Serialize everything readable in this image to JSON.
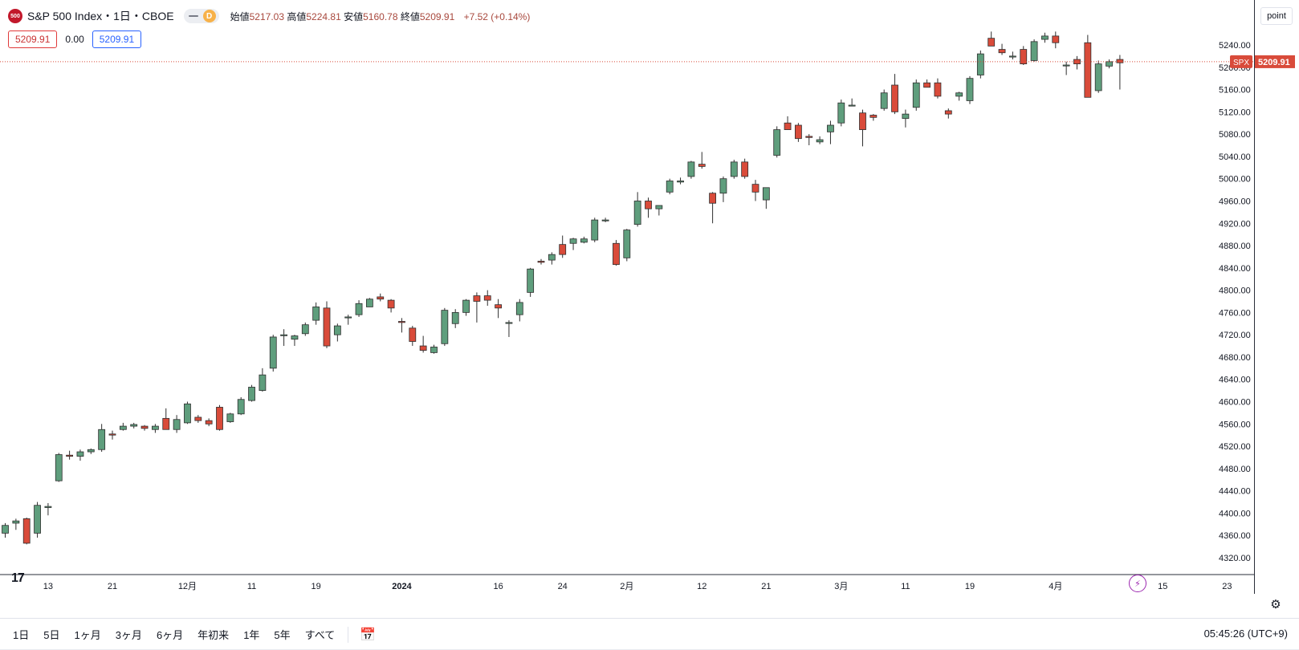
{
  "header": {
    "symbol_badge": "500",
    "title": "S&P 500 Index・1日・CBOE",
    "badge_d": "D",
    "ohlc": [
      {
        "label": "始値",
        "value": "5217.03"
      },
      {
        "label": "高値",
        "value": "5224.81"
      },
      {
        "label": "安値",
        "value": "5160.78"
      },
      {
        "label": "終値",
        "value": "5209.91"
      }
    ],
    "change": "+7.52 (+0.14%)"
  },
  "values_row": {
    "left": "5209.91",
    "middle": "0.00",
    "right": "5209.91"
  },
  "price_scale_mode": "point",
  "last_price_label": {
    "symbol": "SPX",
    "value": "5209.91"
  },
  "bottom_bar": {
    "ranges": [
      "1日",
      "5日",
      "1ヶ月",
      "3ヶ月",
      "6ヶ月",
      "年初来",
      "1年",
      "5年",
      "すべて"
    ],
    "clock": "05:45:26 (UTC+9)"
  },
  "colors": {
    "up": "#5f9e7d",
    "down": "#d94b3a",
    "price_line": "#d94b3a"
  },
  "icons": [
    "calendar-range-icon",
    "gear-icon",
    "flash-icon",
    "tradingview-logo"
  ],
  "chart_data": {
    "type": "candlestick",
    "title": "S&P 500 Index・1日・CBOE",
    "ylim": [
      4300,
      5280
    ],
    "y_ticks": [
      5240,
      5200,
      5160,
      5120,
      5080,
      5040,
      5000,
      4960,
      4920,
      4880,
      4840,
      4800,
      4760,
      4720,
      4680,
      4640,
      4600,
      4560,
      4520,
      4480,
      4440,
      4400,
      4360,
      4320
    ],
    "x_ticks": [
      {
        "label": "13",
        "index": 4
      },
      {
        "label": "21",
        "index": 10
      },
      {
        "label": "12月",
        "index": 17
      },
      {
        "label": "11",
        "index": 23
      },
      {
        "label": "19",
        "index": 29
      },
      {
        "label": "2024",
        "index": 37
      },
      {
        "label": "16",
        "index": 46
      },
      {
        "label": "24",
        "index": 52
      },
      {
        "label": "2月",
        "index": 58
      },
      {
        "label": "12",
        "index": 65
      },
      {
        "label": "21",
        "index": 71
      },
      {
        "label": "3月",
        "index": 78
      },
      {
        "label": "11",
        "index": 84
      },
      {
        "label": "19",
        "index": 90
      },
      {
        "label": "4月",
        "index": 98
      },
      {
        "label": "15",
        "index": 108
      },
      {
        "label": "23",
        "index": 114
      }
    ],
    "last_value": 5209.91,
    "candles": [
      [
        4364,
        4382,
        4356,
        4378
      ],
      [
        4382,
        4390,
        4370,
        4386
      ],
      [
        4390,
        4392,
        4344,
        4346
      ],
      [
        4364,
        4420,
        4356,
        4414
      ],
      [
        4410,
        4418,
        4396,
        4412
      ],
      [
        4458,
        4508,
        4456,
        4505
      ],
      [
        4504,
        4512,
        4496,
        4502
      ],
      [
        4502,
        4514,
        4494,
        4510
      ],
      [
        4510,
        4516,
        4506,
        4514
      ],
      [
        4514,
        4560,
        4510,
        4550
      ],
      [
        4542,
        4548,
        4532,
        4540
      ],
      [
        4550,
        4562,
        4548,
        4556
      ],
      [
        4556,
        4562,
        4552,
        4559
      ],
      [
        4556,
        4558,
        4548,
        4552
      ],
      [
        4550,
        4560,
        4544,
        4556
      ],
      [
        4570,
        4588,
        4550,
        4550
      ],
      [
        4550,
        4576,
        4544,
        4568
      ],
      [
        4562,
        4600,
        4560,
        4596
      ],
      [
        4572,
        4576,
        4562,
        4566
      ],
      [
        4566,
        4570,
        4556,
        4560
      ],
      [
        4590,
        4594,
        4548,
        4550
      ],
      [
        4564,
        4580,
        4562,
        4578
      ],
      [
        4578,
        4608,
        4576,
        4604
      ],
      [
        4602,
        4630,
        4600,
        4626
      ],
      [
        4620,
        4660,
        4618,
        4648
      ],
      [
        4660,
        4720,
        4654,
        4716
      ],
      [
        4720,
        4730,
        4700,
        4720
      ],
      [
        4712,
        4720,
        4700,
        4718
      ],
      [
        4722,
        4742,
        4718,
        4738
      ],
      [
        4746,
        4778,
        4738,
        4770
      ],
      [
        4768,
        4780,
        4696,
        4700
      ],
      [
        4720,
        4740,
        4708,
        4736
      ],
      [
        4752,
        4756,
        4738,
        4752
      ],
      [
        4756,
        4782,
        4752,
        4776
      ],
      [
        4770,
        4786,
        4770,
        4784
      ],
      [
        4788,
        4794,
        4780,
        4784
      ],
      [
        4782,
        4784,
        4760,
        4768
      ],
      [
        4744,
        4750,
        4724,
        4742
      ],
      [
        4732,
        4736,
        4700,
        4708
      ],
      [
        4700,
        4718,
        4688,
        4692
      ],
      [
        4688,
        4702,
        4686,
        4698
      ],
      [
        4704,
        4768,
        4700,
        4764
      ],
      [
        4740,
        4766,
        4732,
        4760
      ],
      [
        4760,
        4784,
        4754,
        4782
      ],
      [
        4790,
        4796,
        4742,
        4780
      ],
      [
        4790,
        4800,
        4772,
        4782
      ],
      [
        4774,
        4784,
        4750,
        4768
      ],
      [
        4742,
        4746,
        4716,
        4742
      ],
      [
        4756,
        4784,
        4744,
        4778
      ],
      [
        4796,
        4840,
        4788,
        4838
      ],
      [
        4852,
        4856,
        4846,
        4850
      ],
      [
        4854,
        4868,
        4846,
        4864
      ],
      [
        4882,
        4898,
        4858,
        4864
      ],
      [
        4884,
        4894,
        4872,
        4892
      ],
      [
        4886,
        4896,
        4884,
        4892
      ],
      [
        4890,
        4930,
        4886,
        4926
      ],
      [
        4926,
        4930,
        4922,
        4926
      ],
      [
        4884,
        4890,
        4844,
        4846
      ],
      [
        4858,
        4910,
        4852,
        4908
      ],
      [
        4918,
        4976,
        4914,
        4960
      ],
      [
        4960,
        4966,
        4930,
        4946
      ],
      [
        4946,
        4952,
        4934,
        4952
      ],
      [
        4976,
        5000,
        4972,
        4996
      ],
      [
        4994,
        5002,
        4990,
        4996
      ],
      [
        5004,
        5032,
        5000,
        5030
      ],
      [
        5026,
        5048,
        5018,
        5022
      ],
      [
        4974,
        4976,
        4920,
        4956
      ],
      [
        4974,
        5004,
        4958,
        5000
      ],
      [
        5004,
        5034,
        5000,
        5030
      ],
      [
        5030,
        5036,
        5000,
        5004
      ],
      [
        4990,
        4998,
        4960,
        4976
      ],
      [
        4962,
        4984,
        4946,
        4984
      ],
      [
        5042,
        5094,
        5038,
        5088
      ],
      [
        5100,
        5112,
        5088,
        5088
      ],
      [
        5096,
        5100,
        5066,
        5072
      ],
      [
        5076,
        5080,
        5060,
        5074
      ],
      [
        5066,
        5076,
        5062,
        5070
      ],
      [
        5084,
        5104,
        5062,
        5096
      ],
      [
        5100,
        5142,
        5094,
        5136
      ],
      [
        5132,
        5144,
        5130,
        5132
      ],
      [
        5118,
        5124,
        5058,
        5088
      ],
      [
        5114,
        5116,
        5104,
        5110
      ],
      [
        5126,
        5160,
        5122,
        5154
      ],
      [
        5168,
        5188,
        5116,
        5120
      ],
      [
        5108,
        5124,
        5092,
        5116
      ],
      [
        5128,
        5178,
        5122,
        5172
      ],
      [
        5172,
        5178,
        5164,
        5164
      ],
      [
        5172,
        5180,
        5144,
        5148
      ],
      [
        5122,
        5126,
        5108,
        5116
      ],
      [
        5148,
        5156,
        5140,
        5154
      ],
      [
        5140,
        5184,
        5134,
        5180
      ],
      [
        5186,
        5230,
        5180,
        5224
      ],
      [
        5252,
        5264,
        5240,
        5238
      ],
      [
        5232,
        5242,
        5222,
        5226
      ],
      [
        5220,
        5228,
        5214,
        5220
      ],
      [
        5232,
        5238,
        5204,
        5206
      ],
      [
        5212,
        5250,
        5210,
        5246
      ],
      [
        5250,
        5262,
        5244,
        5256
      ],
      [
        5256,
        5264,
        5234,
        5244
      ],
      [
        5204,
        5210,
        5186,
        5204
      ],
      [
        5214,
        5220,
        5196,
        5206
      ],
      [
        5244,
        5258,
        5146,
        5146
      ],
      [
        5158,
        5212,
        5154,
        5206
      ],
      [
        5202,
        5214,
        5198,
        5210
      ],
      [
        5214,
        5222,
        5160,
        5208
      ]
    ]
  }
}
